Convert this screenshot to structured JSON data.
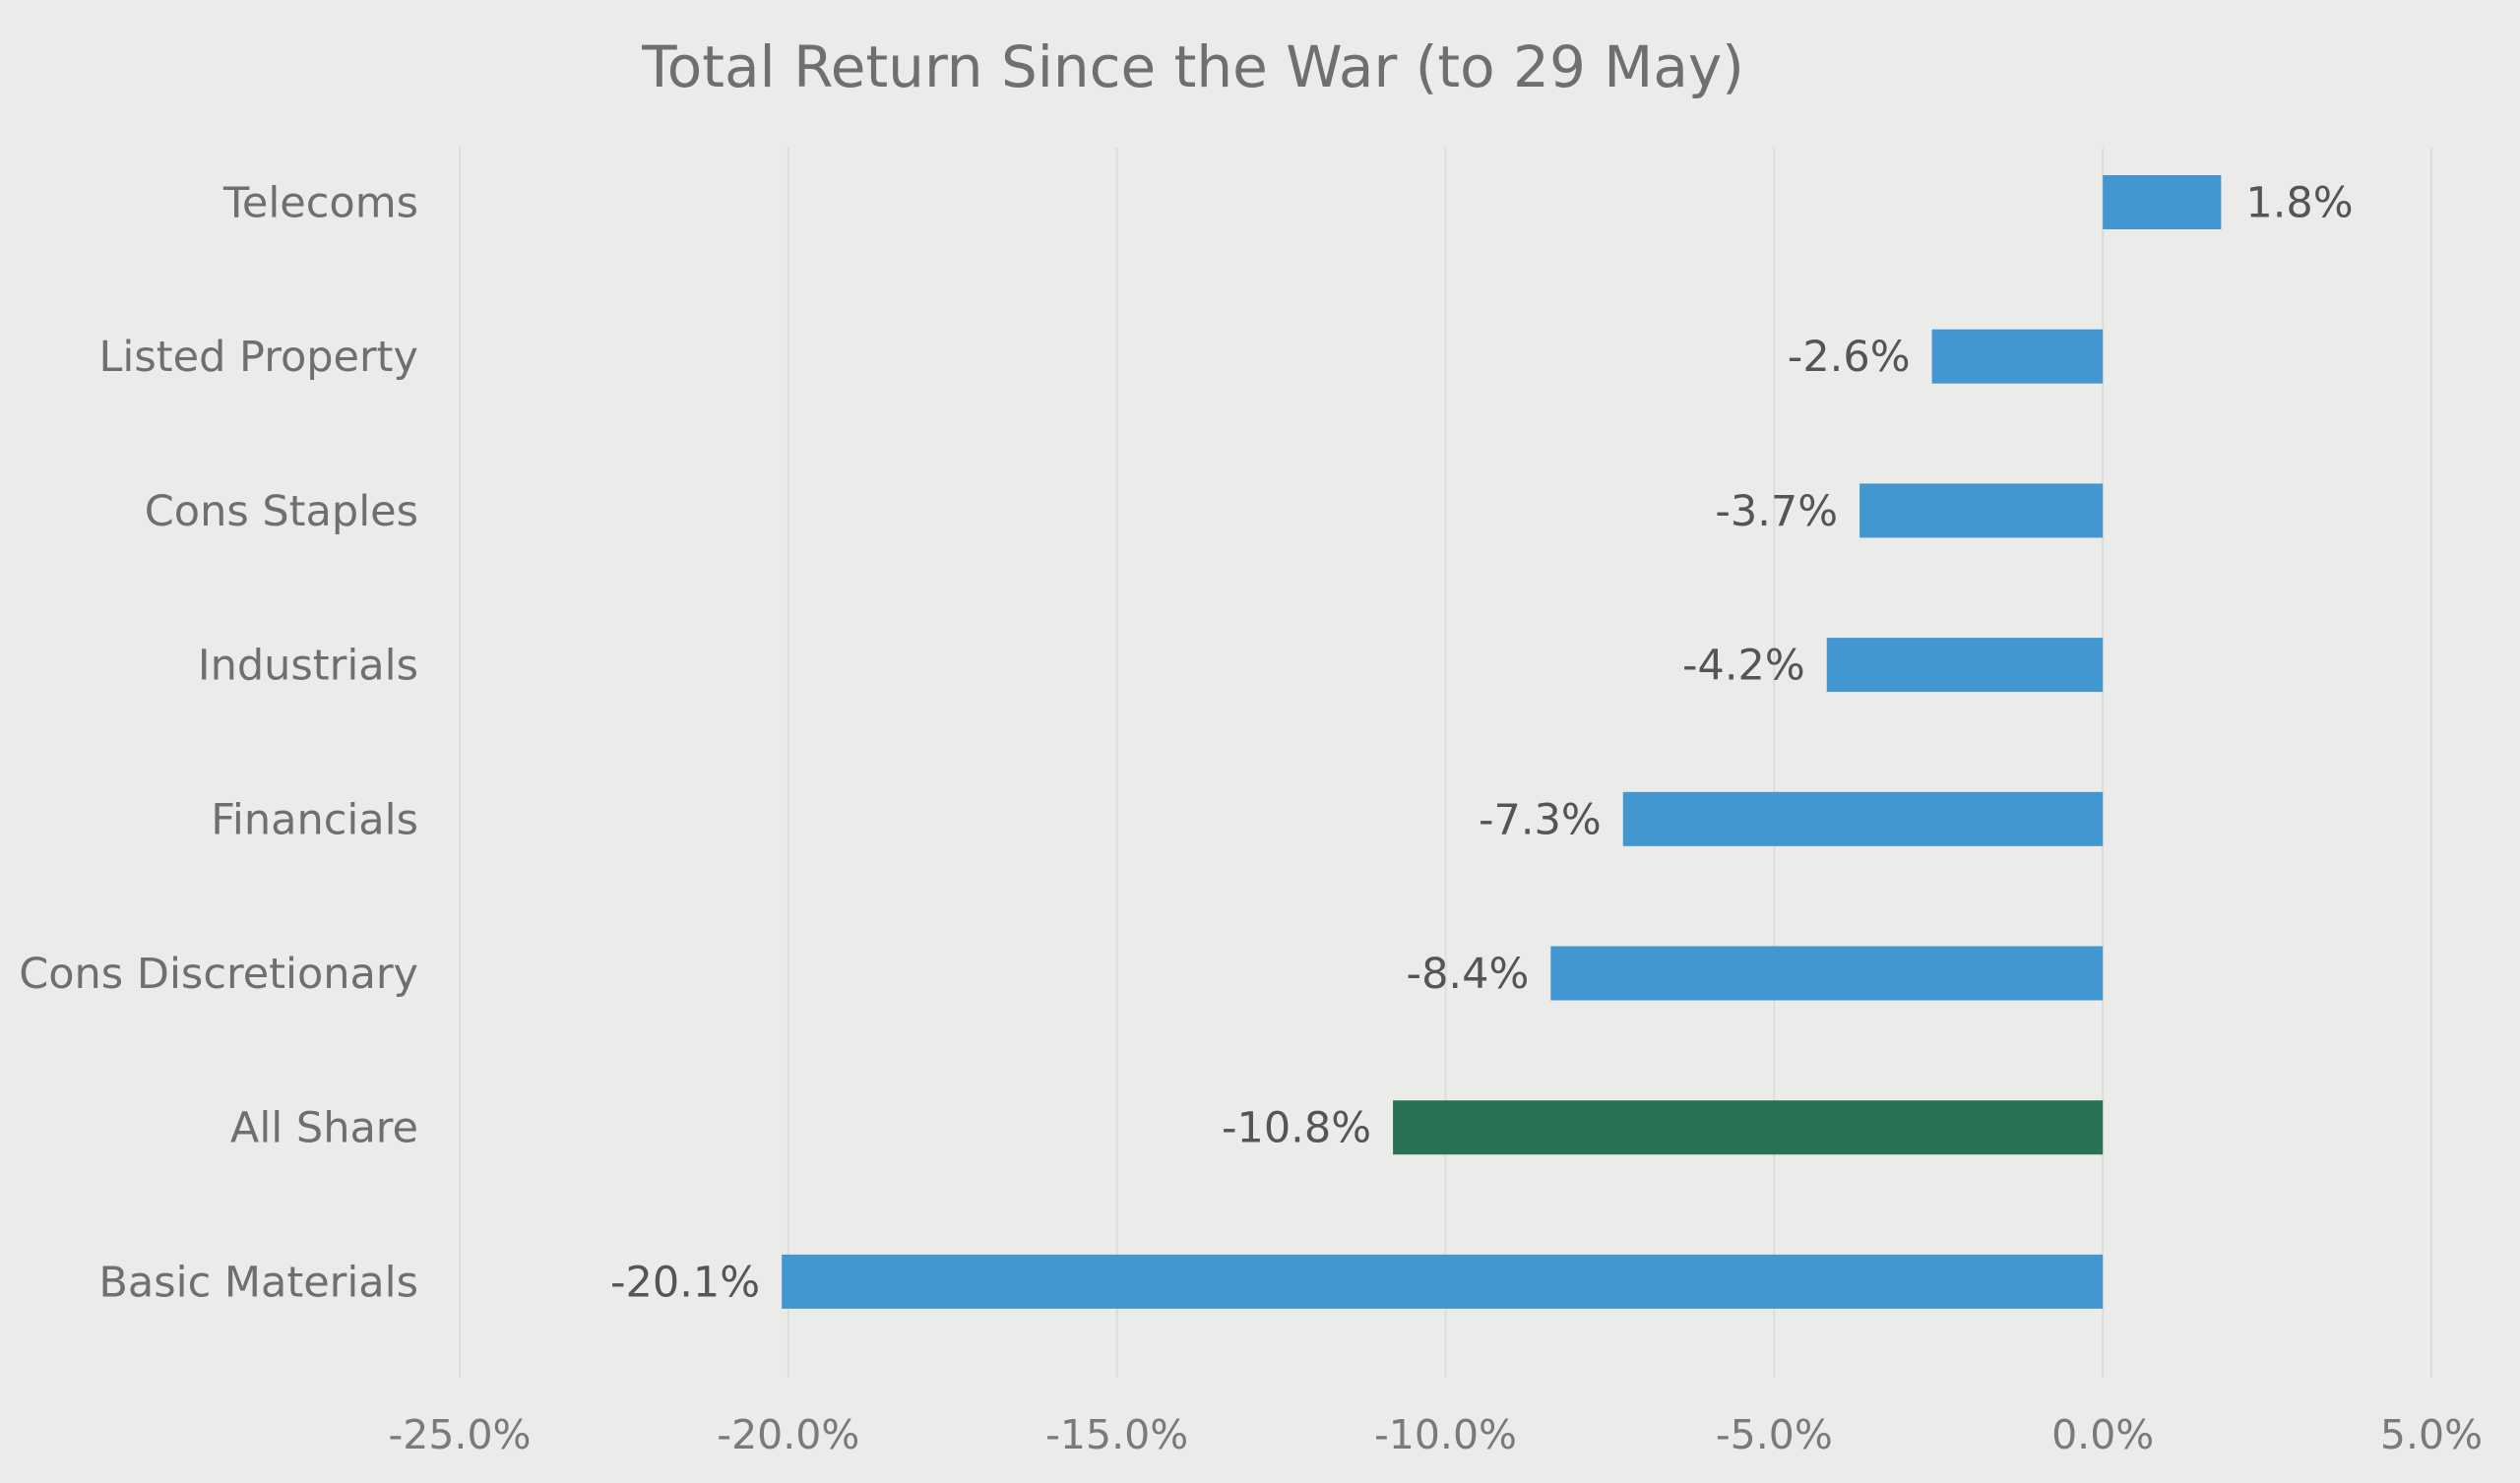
{
  "chart_data": {
    "type": "bar",
    "orientation": "horizontal",
    "title": "Total Return Since the War (to 29 May)",
    "xlabel": "",
    "ylabel": "",
    "categories": [
      "Telecoms",
      "Listed Property",
      "Cons Staples",
      "Industrials",
      "Financials",
      "Cons Discretionary",
      "All Share",
      "Basic Materials"
    ],
    "values": [
      1.8,
      -2.6,
      -3.7,
      -4.2,
      -7.3,
      -8.4,
      -10.8,
      -20.1
    ],
    "data_labels": [
      "1.8%",
      "-2.6%",
      "-3.7%",
      "-4.2%",
      "-7.3%",
      "-8.4%",
      "-10.8%",
      "-20.1%"
    ],
    "bar_colors": [
      "#4397d0",
      "#4397d0",
      "#4397d0",
      "#4397d0",
      "#4397d0",
      "#4397d0",
      "#2b7154",
      "#4397d0"
    ],
    "xlim": [
      -25,
      5
    ],
    "xticks": [
      -25,
      -20,
      -15,
      -10,
      -5,
      0,
      5
    ],
    "xtick_labels": [
      "-25.0%",
      "-20.0%",
      "-15.0%",
      "-10.0%",
      "-5.0%",
      "0.0%",
      "5.0%"
    ],
    "grid": true,
    "legend": "none"
  }
}
